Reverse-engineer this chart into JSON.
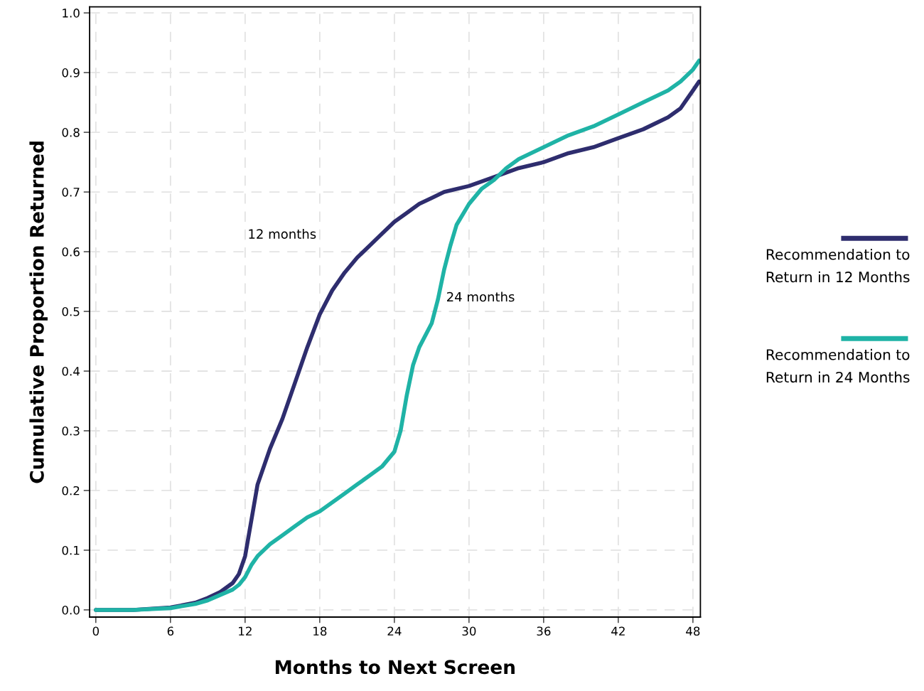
{
  "chart_data": {
    "type": "line",
    "xlabel": "Months to Next Screen",
    "ylabel": "Cumulative Proportion Returned",
    "xlim": [
      -0.5,
      48.6
    ],
    "ylim": [
      -0.012,
      1.01
    ],
    "xticks": [
      0,
      6,
      12,
      18,
      24,
      30,
      36,
      42,
      48
    ],
    "yticks": [
      {
        "value": 0,
        "label": "0.0"
      },
      {
        "value": 0.1,
        "label": "0.1"
      },
      {
        "value": 0.2,
        "label": "0.2"
      },
      {
        "value": 0.3,
        "label": "0.3"
      },
      {
        "value": 0.4,
        "label": "0.4"
      },
      {
        "value": 0.5,
        "label": "0.5"
      },
      {
        "value": 0.6,
        "label": "0.6"
      },
      {
        "value": 0.7,
        "label": "0.7"
      },
      {
        "value": 0.8,
        "label": "0.8"
      },
      {
        "value": 0.9,
        "label": "0.9"
      },
      {
        "value": 1.0,
        "label": "1.0"
      }
    ],
    "grid": true,
    "legend": "right",
    "marker": "none",
    "line_style": "solid",
    "annotations": [
      "12 months",
      "24 months"
    ],
    "series": [
      {
        "name": "Recommendation to\nReturn in 12 Months",
        "color": "#2e2d6e",
        "x": [
          0,
          3,
          6,
          8,
          9,
          10,
          11,
          11.5,
          12,
          12.5,
          13,
          14,
          15,
          16,
          17,
          18,
          19,
          20,
          21,
          22,
          23,
          24,
          25,
          26,
          27,
          28,
          30,
          32,
          34,
          36,
          38,
          40,
          42,
          44,
          46,
          47,
          47.5,
          48,
          48.5
        ],
        "values": [
          0,
          0,
          0.004,
          0.012,
          0.02,
          0.03,
          0.045,
          0.06,
          0.09,
          0.15,
          0.21,
          0.27,
          0.32,
          0.38,
          0.44,
          0.495,
          0.535,
          0.565,
          0.59,
          0.61,
          0.63,
          0.65,
          0.665,
          0.68,
          0.69,
          0.7,
          0.71,
          0.725,
          0.74,
          0.75,
          0.765,
          0.775,
          0.79,
          0.805,
          0.825,
          0.84,
          0.855,
          0.87,
          0.885
        ]
      },
      {
        "name": "Recommendation to\nReturn in 24 Months",
        "color": "#1fb3a6",
        "x": [
          0,
          3,
          6,
          8,
          9,
          10,
          11,
          11.5,
          12,
          12.5,
          13,
          14,
          15,
          16,
          17,
          18,
          19,
          20,
          21,
          22,
          23,
          24,
          24.5,
          25,
          25.5,
          26,
          27,
          27.5,
          28,
          28.5,
          29,
          30,
          31,
          32,
          33,
          34,
          36,
          38,
          40,
          42,
          44,
          46,
          47,
          48,
          48.5
        ],
        "values": [
          0,
          0,
          0.003,
          0.01,
          0.016,
          0.025,
          0.034,
          0.042,
          0.055,
          0.075,
          0.09,
          0.11,
          0.125,
          0.14,
          0.155,
          0.165,
          0.18,
          0.195,
          0.21,
          0.225,
          0.24,
          0.265,
          0.3,
          0.36,
          0.41,
          0.44,
          0.48,
          0.52,
          0.57,
          0.61,
          0.645,
          0.68,
          0.705,
          0.72,
          0.74,
          0.755,
          0.775,
          0.795,
          0.81,
          0.83,
          0.85,
          0.87,
          0.885,
          0.905,
          0.92
        ]
      }
    ]
  }
}
